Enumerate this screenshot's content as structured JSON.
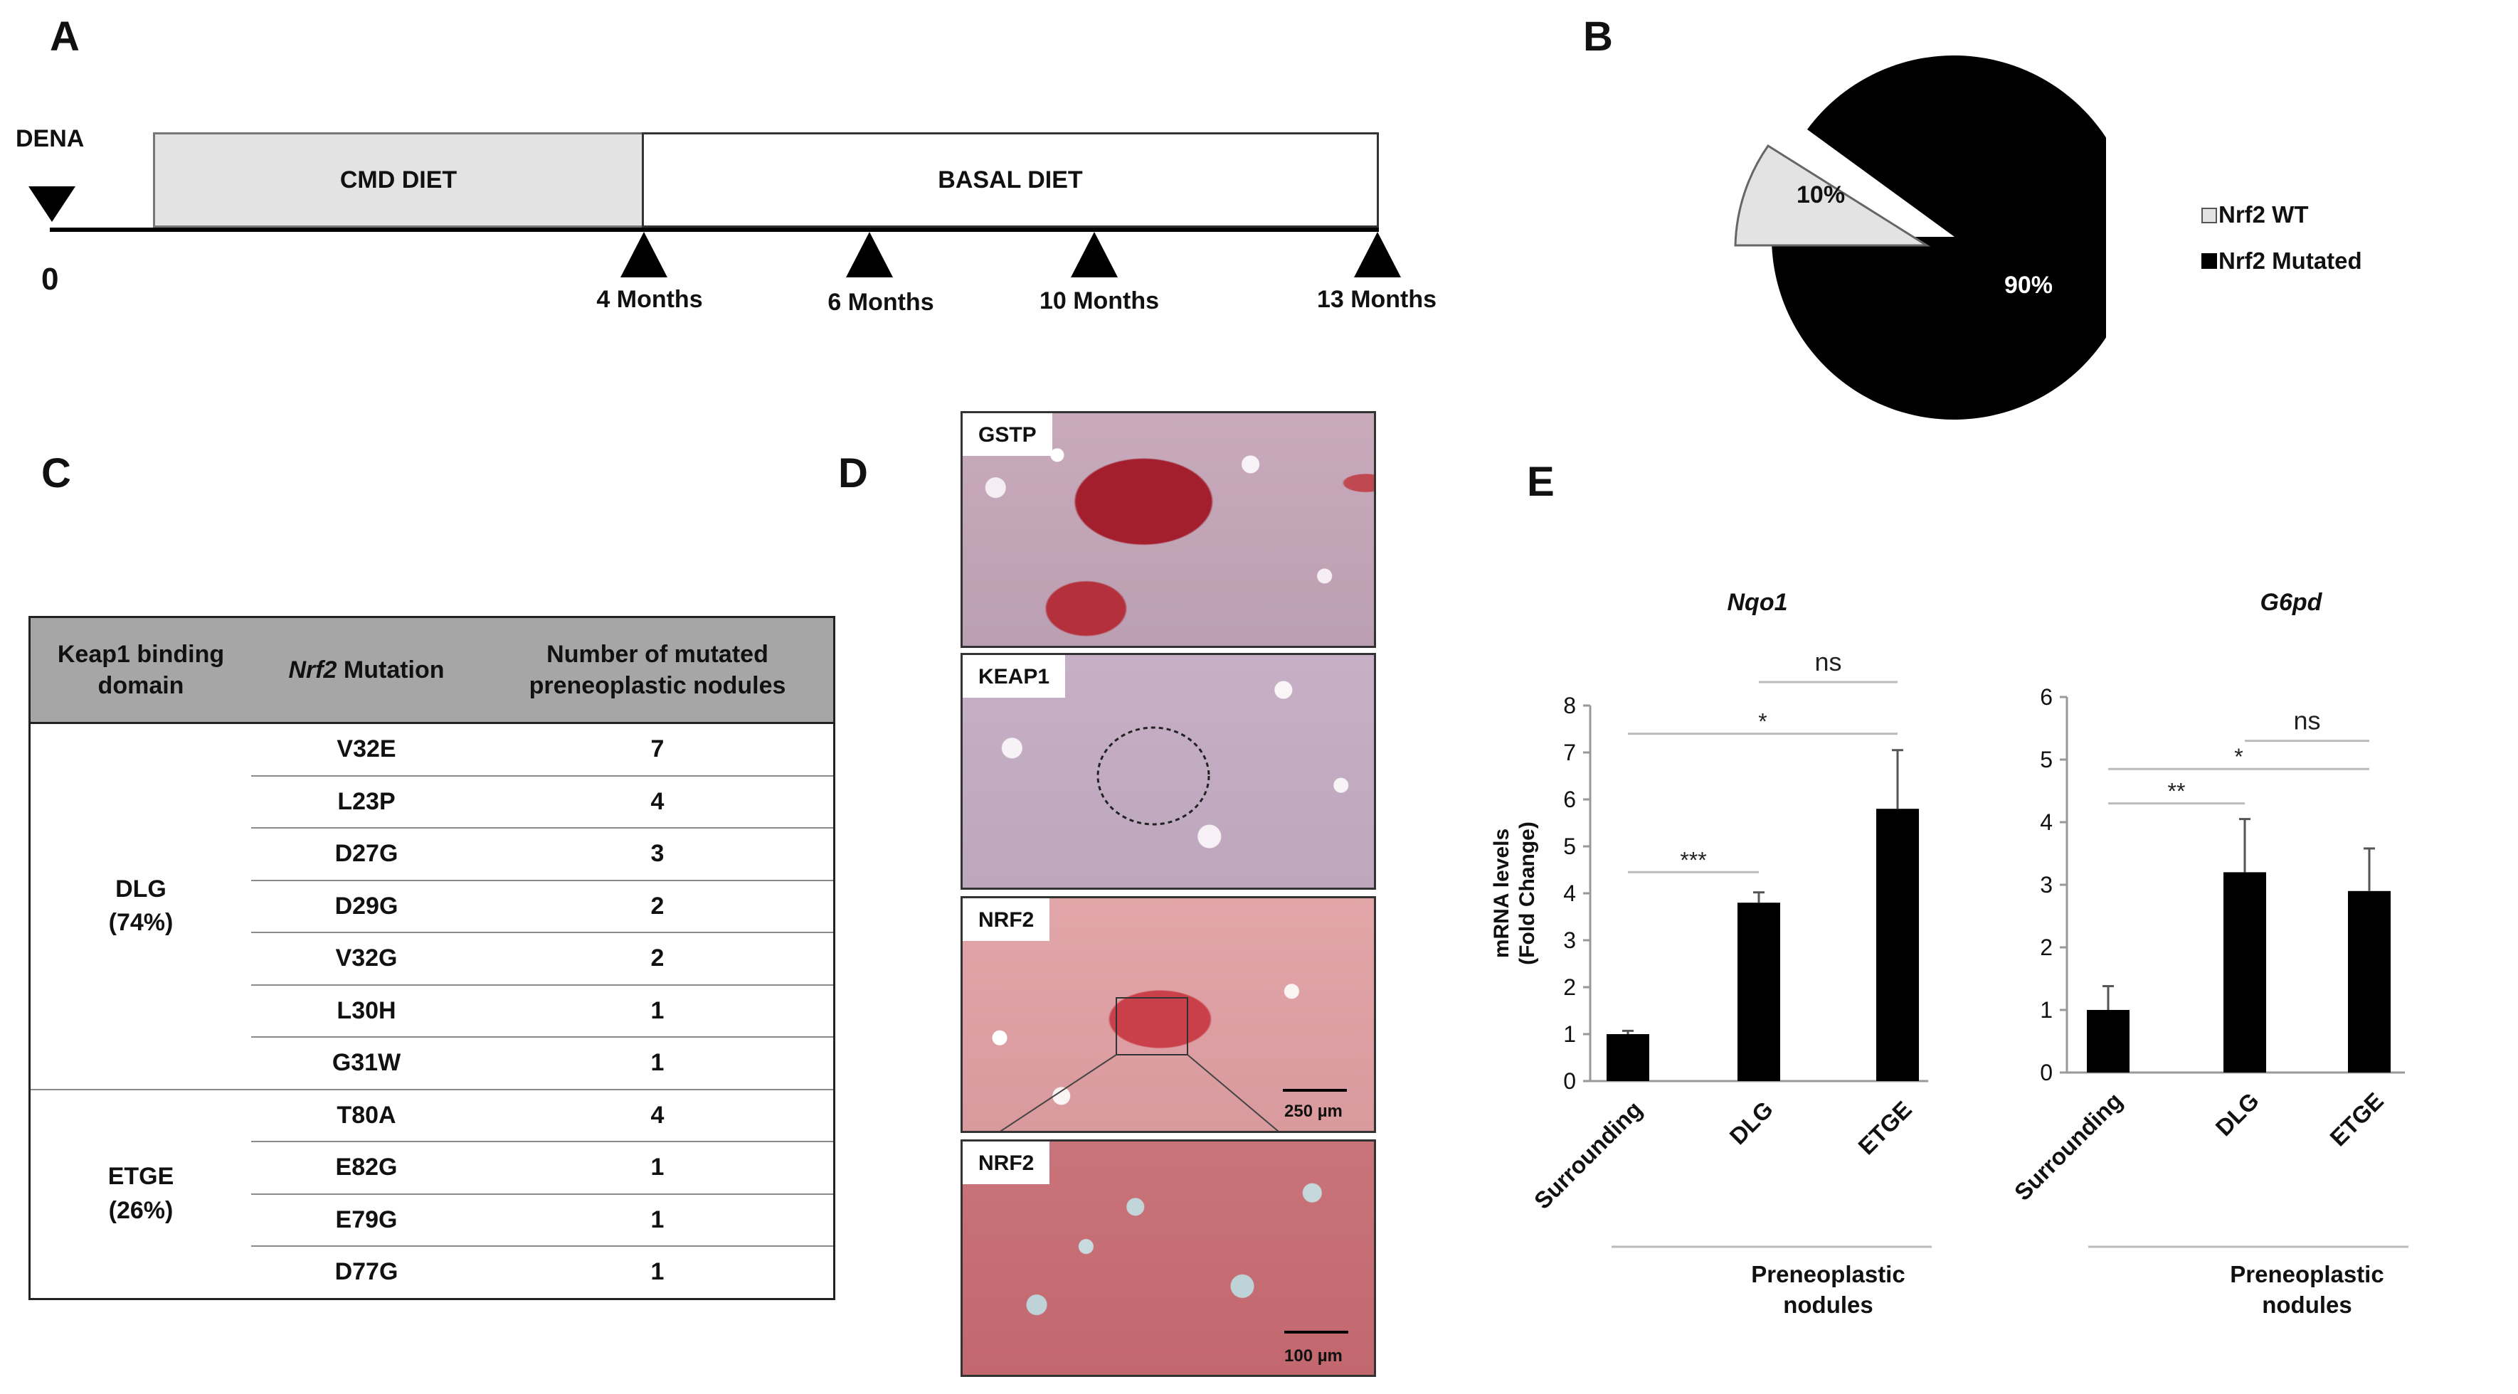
{
  "panel_letters": {
    "a": "A",
    "b": "B",
    "c": "C",
    "d": "D",
    "e": "E"
  },
  "panel_a": {
    "dena_label": "DENA",
    "zero_label": "0",
    "cmd_diet": "CMD DIET",
    "basal_diet": "BASAL DIET",
    "timepoints": [
      "4 Months",
      "6 Months",
      "10 Months",
      "13 Months"
    ],
    "colors": {
      "cmd_fill": "#e3e3e3",
      "basal_fill": "#ffffff"
    }
  },
  "panel_b": {
    "legend": [
      "Nrf2 WT",
      "Nrf2 Mutated"
    ],
    "labels": [
      "10%",
      "90%"
    ],
    "colors": {
      "wt": "#e3e3e3",
      "mutated": "#000000"
    }
  },
  "panel_c": {
    "headers": {
      "col1": "Keap1 binding domain",
      "col2_italic": "Nrf2",
      "col2_rest": " Mutation",
      "col3": "Number of mutated preneoplastic nodules"
    },
    "groups": [
      {
        "domain": "DLG",
        "percent": "(74%)",
        "rows": [
          [
            "V32E",
            "7"
          ],
          [
            "L23P",
            "4"
          ],
          [
            "D27G",
            "3"
          ],
          [
            "D29G",
            "2"
          ],
          [
            "V32G",
            "2"
          ],
          [
            "L30H",
            "1"
          ],
          [
            "G31W",
            "1"
          ]
        ]
      },
      {
        "domain": "ETGE",
        "percent": "(26%)",
        "rows": [
          [
            "T80A",
            "4"
          ],
          [
            "E82G",
            "1"
          ],
          [
            "E79G",
            "1"
          ],
          [
            "D77G",
            "1"
          ]
        ]
      }
    ]
  },
  "panel_d": {
    "images": [
      "GSTP",
      "KEAP1",
      "NRF2",
      "NRF2"
    ],
    "scale_bars": [
      "250 µm",
      "100 µm"
    ]
  },
  "chart_data": [
    {
      "type": "bar",
      "title": "Nqo1",
      "ylabel": "mRNA levels (Fold Change)",
      "categories": [
        "Surrounding",
        "DLG",
        "ETGE"
      ],
      "values": [
        1.0,
        3.8,
        5.8
      ],
      "errors": [
        0.07,
        0.22,
        1.25
      ],
      "ylim": [
        0,
        8
      ],
      "yticks": [
        0,
        1,
        2,
        3,
        4,
        5,
        6,
        7,
        8
      ],
      "group_label": "Preneoplastic nodules",
      "significance": [
        {
          "from": "Surrounding",
          "to": "DLG",
          "label": "***"
        },
        {
          "from": "Surrounding",
          "to": "ETGE",
          "label": "*"
        },
        {
          "from": "DLG",
          "to": "ETGE",
          "label": "ns"
        }
      ],
      "color": "#000000"
    },
    {
      "type": "bar",
      "title": "G6pd",
      "ylabel": "",
      "categories": [
        "Surrounding",
        "DLG",
        "ETGE"
      ],
      "values": [
        1.0,
        3.2,
        2.9
      ],
      "errors": [
        0.38,
        0.85,
        0.68
      ],
      "ylim": [
        0,
        6
      ],
      "yticks": [
        0,
        1,
        2,
        3,
        4,
        5,
        6
      ],
      "group_label": "Preneoplastic nodules",
      "significance": [
        {
          "from": "Surrounding",
          "to": "DLG",
          "label": "**"
        },
        {
          "from": "Surrounding",
          "to": "ETGE",
          "label": "*"
        },
        {
          "from": "DLG",
          "to": "ETGE",
          "label": "ns"
        }
      ],
      "color": "#000000"
    }
  ]
}
